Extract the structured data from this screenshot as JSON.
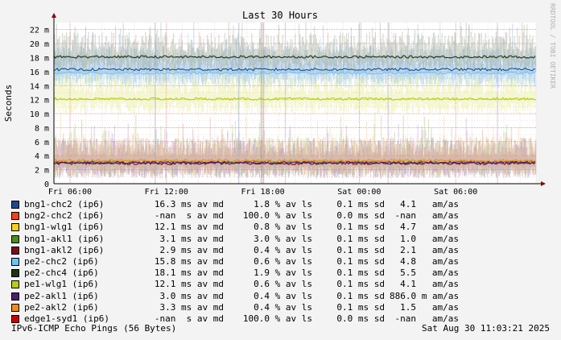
{
  "chart_data": {
    "type": "line",
    "title": "Last 30 Hours",
    "ylabel": "Seconds",
    "watermark": "RRDTOOL / TOBI OETIKER",
    "ylim": [
      0,
      23
    ],
    "y_ticks": [
      "0",
      "2 m",
      "4 m",
      "6 m",
      "8 m",
      "10 m",
      "12 m",
      "14 m",
      "16 m",
      "18 m",
      "20 m",
      "22 m"
    ],
    "x_ticks": [
      "Fri 06:00",
      "Fri 12:00",
      "Fri 18:00",
      "Sat 00:00",
      "Sat 06:00"
    ],
    "x_range_hours": [
      0,
      30
    ],
    "x_tick_hours": [
      1.0,
      7.0,
      13.0,
      19.0,
      25.0
    ],
    "grid": true,
    "series": [
      {
        "name": "bng1-chc2 (ip6)",
        "color": "#1d4a8c",
        "avg_ms": 16.3,
        "draw": true,
        "smoke": "#7aa7d8"
      },
      {
        "name": "bng2-chc2 (ip6)",
        "color": "#ee4411",
        "avg_ms": null,
        "draw": false
      },
      {
        "name": "bng1-wlg1 (ip6)",
        "color": "#f4d01a",
        "avg_ms": 12.1,
        "draw": false
      },
      {
        "name": "bng1-akl1 (ip6)",
        "color": "#4e8a1c",
        "avg_ms": 3.1,
        "draw": true,
        "smoke": "#9cbf6a"
      },
      {
        "name": "bng1-akl2 (ip6)",
        "color": "#7a0c1e",
        "avg_ms": 2.9,
        "draw": true,
        "smoke": "#c88a94"
      },
      {
        "name": "pe2-chc2 (ip6)",
        "color": "#6ec3f4",
        "avg_ms": 15.8,
        "draw": true,
        "smoke": "#9fd2f2"
      },
      {
        "name": "pe2-chc4 (ip6)",
        "color": "#223310",
        "avg_ms": 18.1,
        "draw": true,
        "smoke": "#8e9a80"
      },
      {
        "name": "pe1-wlg1 (ip6)",
        "color": "#b8cc12",
        "avg_ms": 12.1,
        "draw": true,
        "smoke": "#dfe87a"
      },
      {
        "name": "pe2-akl1 (ip6)",
        "color": "#4a1f6e",
        "avg_ms": 3.0,
        "draw": true,
        "smoke": "#a88cc4"
      },
      {
        "name": "pe2-akl2 (ip6)",
        "color": "#f08c1a",
        "avg_ms": 3.3,
        "draw": true,
        "smoke": "#f5c48a"
      },
      {
        "name": "edge1-syd1 (ip6)",
        "color": "#cc0000",
        "avg_ms": null,
        "draw": false
      }
    ]
  },
  "legend": [
    {
      "name": "bng1-chc2 (ip6)",
      "color": "#1d4a8c",
      "avg": "16.3 ms av md",
      "loss": "1.8 % av ls",
      "sd": "0.1 ms sd",
      "am": "4.1   am/as"
    },
    {
      "name": "bng2-chc2 (ip6)",
      "color": "#ee4411",
      "avg": "-nan  s av md",
      "loss": "100.0 % av ls",
      "sd": "0.0 ms sd",
      "am": "-nan   am/as"
    },
    {
      "name": "bng1-wlg1 (ip6)",
      "color": "#f4d01a",
      "avg": "12.1 ms av md",
      "loss": "0.8 % av ls",
      "sd": "0.1 ms sd",
      "am": "4.7   am/as"
    },
    {
      "name": "bng1-akl1 (ip6)",
      "color": "#4e8a1c",
      "avg": "3.1 ms av md",
      "loss": "3.0 % av ls",
      "sd": "0.1 ms sd",
      "am": "1.0   am/as"
    },
    {
      "name": "bng1-akl2 (ip6)",
      "color": "#7a0c1e",
      "avg": "2.9 ms av md",
      "loss": "0.4 % av ls",
      "sd": "0.1 ms sd",
      "am": "2.1   am/as"
    },
    {
      "name": "pe2-chc2 (ip6)",
      "color": "#6ec3f4",
      "avg": "15.8 ms av md",
      "loss": "0.6 % av ls",
      "sd": "0.1 ms sd",
      "am": "4.8   am/as"
    },
    {
      "name": "pe2-chc4 (ip6)",
      "color": "#223310",
      "avg": "18.1 ms av md",
      "loss": "1.9 % av ls",
      "sd": "0.1 ms sd",
      "am": "5.5   am/as"
    },
    {
      "name": "pe1-wlg1 (ip6)",
      "color": "#b8cc12",
      "avg": "12.1 ms av md",
      "loss": "0.6 % av ls",
      "sd": "0.1 ms sd",
      "am": "4.1   am/as"
    },
    {
      "name": "pe2-akl1 (ip6)",
      "color": "#4a1f6e",
      "avg": "3.0 ms av md",
      "loss": "0.4 % av ls",
      "sd": "0.1 ms sd",
      "am": "886.0 m am/as"
    },
    {
      "name": "pe2-akl2 (ip6)",
      "color": "#f08c1a",
      "avg": "3.3 ms av md",
      "loss": "0.4 % av ls",
      "sd": "0.1 ms sd",
      "am": "1.5   am/as"
    },
    {
      "name": "edge1-syd1 (ip6)",
      "color": "#cc0000",
      "avg": "-nan  s av md",
      "loss": "100.0 % av ls",
      "sd": "0.0 ms sd",
      "am": "-nan   am/as"
    }
  ],
  "footer": {
    "left": "IPv6-ICMP Echo Pings (56 Bytes)",
    "right": "Sat Aug 30 11:03:21 2025"
  }
}
